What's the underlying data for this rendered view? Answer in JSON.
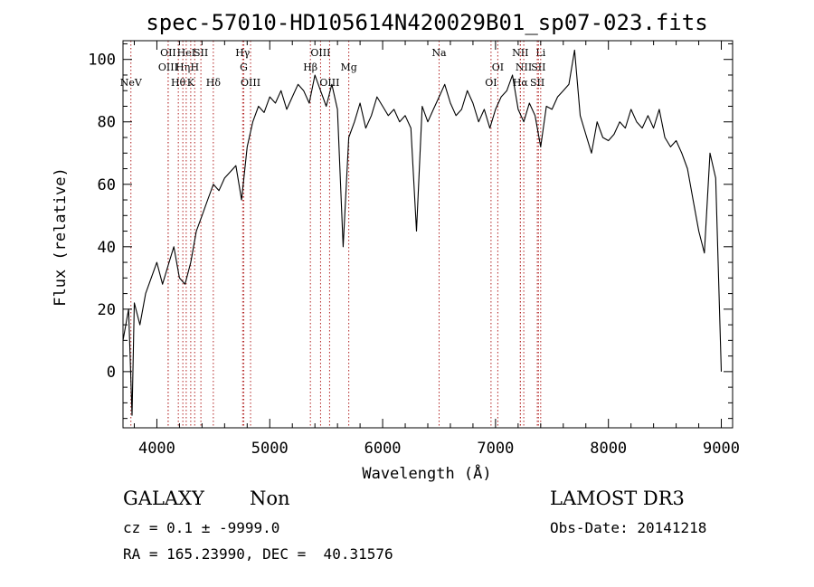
{
  "chart_data": {
    "type": "line",
    "title": "spec-57010-HD105614N420029B01_sp07-023.fits",
    "xlabel": "Wavelength (Å)",
    "ylabel": "Flux (relative)",
    "xlim": [
      3700,
      9100
    ],
    "ylim": [
      -18,
      106
    ],
    "xticks": [
      "4000",
      "5000",
      "6000",
      "7000",
      "8000",
      "9000"
    ],
    "yticks": [
      "0",
      "20",
      "40",
      "60",
      "80",
      "100"
    ],
    "series": [
      {
        "name": "spectrum",
        "x": [
          3700,
          3750,
          3780,
          3800,
          3850,
          3900,
          3950,
          4000,
          4050,
          4100,
          4150,
          4200,
          4250,
          4300,
          4350,
          4400,
          4450,
          4500,
          4550,
          4600,
          4650,
          4700,
          4750,
          4800,
          4850,
          4900,
          4950,
          5000,
          5050,
          5100,
          5150,
          5200,
          5250,
          5300,
          5350,
          5400,
          5450,
          5500,
          5550,
          5600,
          5650,
          5700,
          5750,
          5800,
          5850,
          5900,
          5950,
          6000,
          6050,
          6100,
          6150,
          6200,
          6250,
          6300,
          6350,
          6400,
          6450,
          6500,
          6550,
          6600,
          6650,
          6700,
          6750,
          6800,
          6850,
          6900,
          6950,
          7000,
          7050,
          7100,
          7150,
          7200,
          7250,
          7300,
          7350,
          7400,
          7450,
          7500,
          7550,
          7600,
          7650,
          7700,
          7750,
          7800,
          7850,
          7900,
          7950,
          8000,
          8050,
          8100,
          8150,
          8200,
          8250,
          8300,
          8350,
          8400,
          8450,
          8500,
          8550,
          8600,
          8650,
          8700,
          8750,
          8800,
          8850,
          8900,
          8950,
          9000
        ],
        "values": [
          10,
          20,
          -14,
          22,
          15,
          25,
          30,
          35,
          28,
          34,
          40,
          30,
          28,
          35,
          45,
          50,
          55,
          60,
          58,
          62,
          64,
          66,
          55,
          72,
          80,
          85,
          83,
          88,
          86,
          90,
          84,
          88,
          92,
          90,
          86,
          95,
          90,
          85,
          92,
          84,
          40,
          75,
          80,
          86,
          78,
          82,
          88,
          85,
          82,
          84,
          80,
          82,
          78,
          45,
          85,
          80,
          84,
          88,
          92,
          86,
          82,
          84,
          90,
          86,
          80,
          84,
          78,
          84,
          88,
          90,
          95,
          84,
          80,
          86,
          82,
          72,
          85,
          84,
          88,
          90,
          92,
          103,
          82,
          76,
          70,
          80,
          75,
          74,
          76,
          80,
          78,
          84,
          80,
          78,
          82,
          78,
          84,
          75,
          72,
          74,
          70,
          65,
          55,
          45,
          38,
          70,
          62,
          0
        ]
      }
    ],
    "line_markers": [
      {
        "name": "NeV",
        "x": 3770,
        "row": 3
      },
      {
        "name": "OII",
        "x": 4100,
        "row": 0
      },
      {
        "name": "OIII",
        "x": 4100,
        "row": 1
      },
      {
        "name": "Hθ",
        "x": 4190,
        "row": 2
      },
      {
        "name": "Hη",
        "x": 4230,
        "row": 1
      },
      {
        "name": "HeI",
        "x": 4260,
        "row": 0
      },
      {
        "name": "K",
        "x": 4300,
        "row": 2
      },
      {
        "name": "H",
        "x": 4335,
        "row": 1
      },
      {
        "name": "SII",
        "x": 4390,
        "row": 0
      },
      {
        "name": "Hδ",
        "x": 4500,
        "row": 2
      },
      {
        "name": "Hγ",
        "x": 4760,
        "row": 0
      },
      {
        "name": "G",
        "x": 4770,
        "row": 1
      },
      {
        "name": "OIII",
        "x": 4830,
        "row": 2
      },
      {
        "name": "OIII",
        "x": 5450,
        "row": 0
      },
      {
        "name": "Hβ",
        "x": 5360,
        "row": 1
      },
      {
        "name": "OIII",
        "x": 5530,
        "row": 2
      },
      {
        "name": "Mg",
        "x": 5700,
        "row": 1
      },
      {
        "name": "Na",
        "x": 6500,
        "row": 0
      },
      {
        "name": "OI",
        "x": 7020,
        "row": 1
      },
      {
        "name": "OI",
        "x": 6960,
        "row": 2
      },
      {
        "name": "NII",
        "x": 7220,
        "row": 0
      },
      {
        "name": "NII",
        "x": 7250,
        "row": 1
      },
      {
        "name": "Hα",
        "x": 7220,
        "row": 2
      },
      {
        "name": "Li",
        "x": 7400,
        "row": 0
      },
      {
        "name": "SII",
        "x": 7380,
        "row": 1
      },
      {
        "name": "SII",
        "x": 7370,
        "row": 2
      }
    ]
  },
  "info": {
    "class_label": "GALAXY",
    "subclass_label": "Non",
    "survey": "LAMOST DR3",
    "redshift_line": "cz = 0.1 ± -9999.0",
    "obs_date_line": "Obs-Date: 20141218",
    "coords_line": "RA = 165.23990, DEC =  40.31576"
  }
}
